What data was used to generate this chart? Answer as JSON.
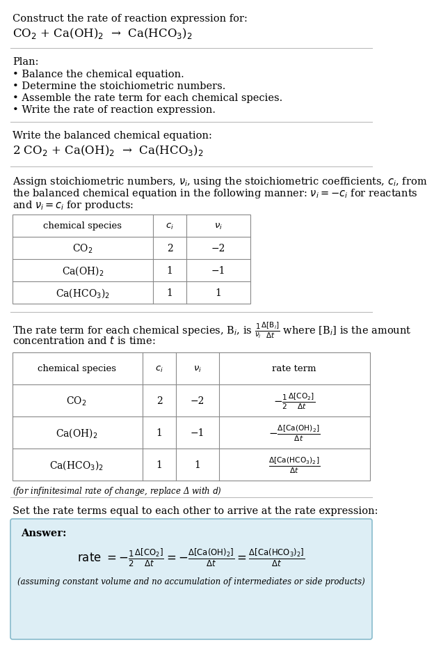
{
  "bg_color": "#ffffff",
  "text_color": "#000000",
  "answer_bg_color": "#ddeef5",
  "answer_border_color": "#88bbcc",
  "title_text": "Construct the rate of reaction expression for:",
  "reaction_unbalanced": "CO$_2$ + Ca(OH)$_2$  →  Ca(HCO$_3$)$_2$",
  "plan_header": "Plan:",
  "plan_items": [
    "• Balance the chemical equation.",
    "• Determine the stoichiometric numbers.",
    "• Assemble the rate term for each chemical species.",
    "• Write the rate of reaction expression."
  ],
  "balanced_header": "Write the balanced chemical equation:",
  "reaction_balanced": "2 CO$_2$ + Ca(OH)$_2$  →  Ca(HCO$_3$)$_2$",
  "stoich_lines": [
    "Assign stoichiometric numbers, $\\nu_i$, using the stoichiometric coefficients, $c_i$, from",
    "the balanced chemical equation in the following manner: $\\nu_i = -c_i$ for reactants",
    "and $\\nu_i = c_i$ for products:"
  ],
  "table1_headers": [
    "chemical species",
    "$c_i$",
    "$\\nu_i$"
  ],
  "table1_rows": [
    [
      "CO$_2$",
      "2",
      "−2"
    ],
    [
      "Ca(OH)$_2$",
      "1",
      "−1"
    ],
    [
      "Ca(HCO$_3$)$_2$",
      "1",
      "1"
    ]
  ],
  "rate_lines": [
    "The rate term for each chemical species, B$_i$, is $\\frac{1}{\\nu_i}\\frac{\\Delta[\\mathrm{B}_i]}{\\Delta t}$ where [B$_i$] is the amount",
    "concentration and $t$ is time:"
  ],
  "table2_headers": [
    "chemical species",
    "$c_i$",
    "$\\nu_i$",
    "rate term"
  ],
  "table2_rows": [
    [
      "CO$_2$",
      "2",
      "−2",
      "$-\\frac{1}{2}\\frac{\\Delta[\\mathrm{CO}_2]}{\\Delta t}$"
    ],
    [
      "Ca(OH)$_2$",
      "1",
      "−1",
      "$-\\frac{\\Delta[\\mathrm{Ca(OH)}_2]}{\\Delta t}$"
    ],
    [
      "Ca(HCO$_3$)$_2$",
      "1",
      "1",
      "$\\frac{\\Delta[\\mathrm{Ca(HCO}_3)_2]}{\\Delta t}$"
    ]
  ],
  "infinitesimal_note": "(for infinitesimal rate of change, replace Δ with $d$)",
  "set_equal_text": "Set the rate terms equal to each other to arrive at the rate expression:",
  "answer_label": "Answer:",
  "answer_rate_eq": "rate $= -\\frac{1}{2}\\frac{\\Delta[\\mathrm{CO}_2]}{\\Delta t} = -\\frac{\\Delta[\\mathrm{Ca(OH)}_2]}{\\Delta t} = \\frac{\\Delta[\\mathrm{Ca(HCO}_3)_2]}{\\Delta t}$",
  "assuming_text": "(assuming constant volume and no accumulation of intermediates or side products)"
}
